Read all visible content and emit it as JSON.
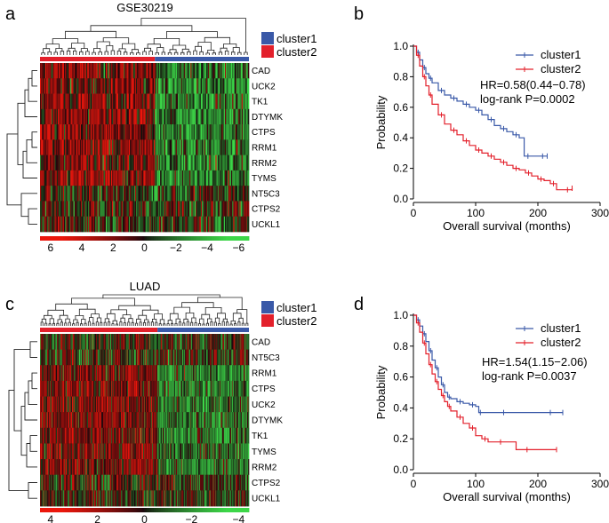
{
  "panels": {
    "a": {
      "label": "a",
      "title": "GSE30219",
      "legend": [
        "cluster1",
        "cluster2"
      ],
      "legend_colors": [
        "#3a59a8",
        "#e3202b"
      ]
    },
    "b": {
      "label": "b"
    },
    "c": {
      "label": "c",
      "title": "LUAD",
      "legend": [
        "cluster1",
        "cluster2"
      ],
      "legend_colors": [
        "#3a59a8",
        "#e3202b"
      ]
    },
    "d": {
      "label": "d"
    }
  },
  "chart_data": [
    {
      "type": "heatmap",
      "id": "a",
      "title": "GSE30219",
      "rows": [
        "CAD",
        "UCK2",
        "TK1",
        "DTYMK",
        "CTPS",
        "RRM1",
        "RRM2",
        "TYMS",
        "NT5C3",
        "CTPS2",
        "UCKL1"
      ],
      "n_samples": 200,
      "cluster_split": 0.55,
      "column_annotation": [
        "cluster2",
        "cluster1"
      ],
      "color_scale": {
        "ticks": [
          "6",
          "4",
          "2",
          "0",
          "−2",
          "−4",
          "−6"
        ],
        "range": [
          6,
          -6
        ],
        "high_color": "#e3202b",
        "low_color": "#4cb04a"
      },
      "row_groups": {
        "upregulated_in_cluster2": [
          "CAD",
          "UCK2",
          "TK1",
          "DTYMK",
          "CTPS",
          "RRM1",
          "RRM2",
          "TYMS"
        ],
        "mixed": [
          "NT5C3",
          "CTPS2",
          "UCKL1"
        ]
      }
    },
    {
      "type": "line",
      "subtype": "kaplan-meier",
      "id": "b",
      "xlabel": "Overall survival (months)",
      "ylabel": "Probability",
      "xlim": [
        0,
        300
      ],
      "ylim": [
        0,
        1.0
      ],
      "xticks": [
        "0",
        "100",
        "200",
        "300"
      ],
      "yticks": [
        "0.0",
        "0.2",
        "0.4",
        "0.6",
        "0.8",
        "1.0"
      ],
      "legend": [
        "cluster1",
        "cluster2"
      ],
      "annotation": [
        "HR=0.58(0.44−0.78)",
        "log-rank P=0.0002"
      ],
      "series": [
        {
          "name": "cluster1",
          "color": "#3a59a8",
          "x": [
            0,
            5,
            10,
            15,
            20,
            25,
            30,
            40,
            50,
            60,
            70,
            80,
            90,
            100,
            110,
            120,
            130,
            140,
            150,
            160,
            170,
            178,
            190,
            200,
            215
          ],
          "y": [
            1.0,
            0.96,
            0.91,
            0.86,
            0.82,
            0.79,
            0.76,
            0.71,
            0.68,
            0.66,
            0.64,
            0.62,
            0.6,
            0.58,
            0.55,
            0.52,
            0.48,
            0.46,
            0.44,
            0.42,
            0.4,
            0.28,
            0.28,
            0.28,
            0.28
          ]
        },
        {
          "name": "cluster2",
          "color": "#e3202b",
          "x": [
            0,
            5,
            10,
            15,
            20,
            25,
            30,
            40,
            50,
            60,
            70,
            80,
            90,
            100,
            110,
            120,
            130,
            140,
            150,
            160,
            170,
            180,
            190,
            200,
            210,
            220,
            230,
            240,
            255
          ],
          "y": [
            1.0,
            0.94,
            0.87,
            0.8,
            0.74,
            0.68,
            0.62,
            0.55,
            0.49,
            0.45,
            0.42,
            0.38,
            0.35,
            0.32,
            0.3,
            0.28,
            0.26,
            0.24,
            0.22,
            0.2,
            0.19,
            0.17,
            0.15,
            0.13,
            0.12,
            0.1,
            0.06,
            0.06,
            0.07
          ]
        }
      ]
    },
    {
      "type": "heatmap",
      "id": "c",
      "title": "LUAD",
      "rows": [
        "CAD",
        "NT5C3",
        "RRM1",
        "CTPS",
        "UCK2",
        "DTYMK",
        "TK1",
        "TYMS",
        "RRM2",
        "CTPS2",
        "UCKL1"
      ],
      "n_samples": 320,
      "cluster_split": 0.565,
      "column_annotation": [
        "cluster2",
        "cluster1"
      ],
      "color_scale": {
        "ticks": [
          "4",
          "2",
          "0",
          "−2",
          "−4"
        ],
        "range": [
          4,
          -4
        ],
        "high_color": "#e3202b",
        "low_color": "#4cb04a"
      },
      "row_groups": {
        "upregulated_in_cluster2": [
          "RRM1",
          "CTPS",
          "UCK2",
          "DTYMK",
          "TK1",
          "TYMS",
          "RRM2"
        ],
        "mixed": [
          "CAD",
          "NT5C3",
          "CTPS2",
          "UCKL1"
        ]
      }
    },
    {
      "type": "line",
      "subtype": "kaplan-meier",
      "id": "d",
      "xlabel": "Overall survival (months)",
      "ylabel": "Probability",
      "xlim": [
        0,
        300
      ],
      "ylim": [
        0,
        1.0
      ],
      "xticks": [
        "0",
        "100",
        "200",
        "300"
      ],
      "yticks": [
        "0.0",
        "0.2",
        "0.4",
        "0.6",
        "0.8",
        "1.0"
      ],
      "legend": [
        "cluster1",
        "cluster2"
      ],
      "annotation": [
        "HR=1.54(1.15−2.06)",
        "log-rank P=0.0037"
      ],
      "series": [
        {
          "name": "cluster1",
          "color": "#3a59a8",
          "x": [
            0,
            5,
            10,
            15,
            20,
            25,
            30,
            35,
            40,
            45,
            50,
            55,
            60,
            70,
            80,
            90,
            100,
            105,
            110,
            130,
            160,
            200,
            240
          ],
          "y": [
            1.0,
            0.97,
            0.93,
            0.88,
            0.83,
            0.77,
            0.71,
            0.66,
            0.6,
            0.55,
            0.5,
            0.47,
            0.46,
            0.44,
            0.43,
            0.42,
            0.41,
            0.37,
            0.37,
            0.37,
            0.37,
            0.37,
            0.37
          ]
        },
        {
          "name": "cluster2",
          "color": "#e3202b",
          "x": [
            0,
            5,
            10,
            15,
            20,
            25,
            30,
            35,
            40,
            45,
            50,
            55,
            60,
            70,
            80,
            90,
            100,
            110,
            120,
            130,
            150,
            165,
            200,
            230
          ],
          "y": [
            1.0,
            0.95,
            0.89,
            0.82,
            0.75,
            0.68,
            0.62,
            0.57,
            0.52,
            0.48,
            0.44,
            0.41,
            0.38,
            0.34,
            0.3,
            0.27,
            0.22,
            0.2,
            0.18,
            0.18,
            0.18,
            0.13,
            0.13,
            0.13
          ]
        }
      ]
    }
  ]
}
